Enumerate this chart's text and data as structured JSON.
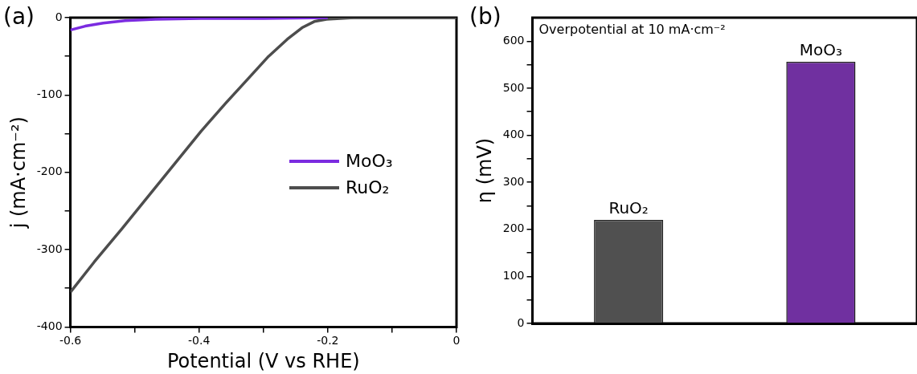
{
  "chart_data": [
    {
      "type": "line",
      "title": "(a)",
      "xlabel": "Potential (V vs RHE)",
      "ylabel": "j (mA·cm⁻²)",
      "xlim": [
        -0.6,
        0
      ],
      "xticks": [
        -0.6,
        {
          "value": -0.5,
          "label": null
        },
        -0.4,
        {
          "value": -0.3,
          "label": null
        },
        -0.2,
        {
          "value": -0.1,
          "label": null
        },
        0
      ],
      "ylim": [
        -400,
        0
      ],
      "yticks": [
        -400,
        {
          "value": -350,
          "label": null
        },
        -300,
        {
          "value": -250,
          "label": null
        },
        -200,
        {
          "value": -150,
          "label": null
        },
        -100,
        {
          "value": -50,
          "label": null
        },
        0
      ],
      "legend": "right",
      "grid": false,
      "marker": "none",
      "line_style": "solid",
      "series": [
        {
          "name": "MoO₃",
          "color": "#7b2be0",
          "x": [
            -0.6,
            -0.577,
            -0.549,
            -0.515,
            -0.468,
            -0.397,
            -0.3,
            -0.2
          ],
          "values": [
            -16,
            -11,
            -7,
            -4,
            -2,
            -1,
            -1,
            0
          ]
        },
        {
          "name": "RuO₂",
          "color": "#4d4d4d",
          "x": [
            -0.6,
            -0.563,
            -0.52,
            -0.477,
            -0.435,
            -0.397,
            -0.359,
            -0.325,
            -0.292,
            -0.263,
            -0.24,
            -0.221,
            -0.202,
            -0.159,
            -0.1,
            0
          ],
          "values": [
            -355,
            -316,
            -273,
            -229,
            -186,
            -147,
            -111,
            -80,
            -50,
            -28,
            -13,
            -5,
            -2,
            0,
            0,
            0
          ]
        }
      ]
    },
    {
      "type": "bar",
      "title": "(b)",
      "ylabel": "η (mV)",
      "categories": [
        "RuO₂",
        "MoO₃"
      ],
      "values": [
        220,
        556
      ],
      "colors": [
        "#505050",
        "#7030a0"
      ],
      "ylim": [
        0,
        650
      ],
      "yticks": [
        0,
        {
          "value": 50,
          "label": null
        },
        100,
        {
          "value": 150,
          "label": null
        },
        200,
        {
          "value": 250,
          "label": null
        },
        300,
        {
          "value": 350,
          "label": null
        },
        400,
        {
          "value": 450,
          "label": null
        },
        500,
        {
          "value": 550,
          "label": null
        },
        600
      ],
      "tick_labels": "y",
      "grid": false,
      "legend": false,
      "annotations": [
        "Overpotential at 10 mA·cm⁻²"
      ]
    }
  ]
}
